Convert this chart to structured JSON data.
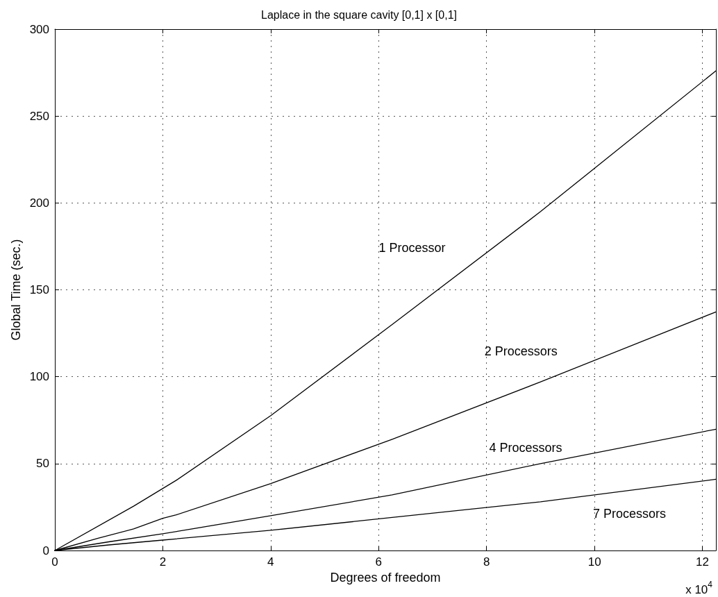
{
  "chart_data": {
    "type": "line",
    "title": "Laplace in the square cavity [0,1] x [0,1]",
    "xlabel": "Degrees of freedom",
    "ylabel": "Global Time (sec.)",
    "xlim": [
      0,
      12.25
    ],
    "xticks": [
      0,
      2,
      4,
      6,
      8,
      10,
      12
    ],
    "ylim": [
      0,
      300
    ],
    "yticks": [
      0,
      50,
      100,
      150,
      200,
      250,
      300
    ],
    "grid": true,
    "marker": "none",
    "line_style": "solid",
    "series": [
      {
        "name": "1 Processor",
        "color": "#000000",
        "x": [
          0,
          1.46,
          2.25,
          4,
          6.25,
          9,
          12.25
        ],
        "values": [
          0,
          25.5,
          40.4,
          77.6,
          130,
          195,
          276
        ]
      },
      {
        "name": "2 Processors",
        "color": "#000000",
        "x": [
          0,
          0.8,
          1.46,
          2,
          2.25,
          4,
          6.25,
          9,
          12.25
        ],
        "values": [
          0,
          7,
          12.4,
          18.5,
          20.5,
          38.5,
          64,
          97,
          137.3
        ]
      },
      {
        "name": "4 Processors",
        "color": "#000000",
        "x": [
          0,
          1,
          2,
          4,
          6.25,
          9,
          12.25
        ],
        "values": [
          0,
          5,
          9.6,
          20,
          32,
          50,
          69.8
        ]
      },
      {
        "name": "7 Processors",
        "color": "#000000",
        "x": [
          0,
          1,
          2,
          4,
          6.25,
          9,
          12.25
        ],
        "values": [
          0,
          3.2,
          6,
          11.6,
          19,
          28,
          41
        ]
      }
    ],
    "annotations": [
      "x 10$^{4}$"
    ]
  }
}
